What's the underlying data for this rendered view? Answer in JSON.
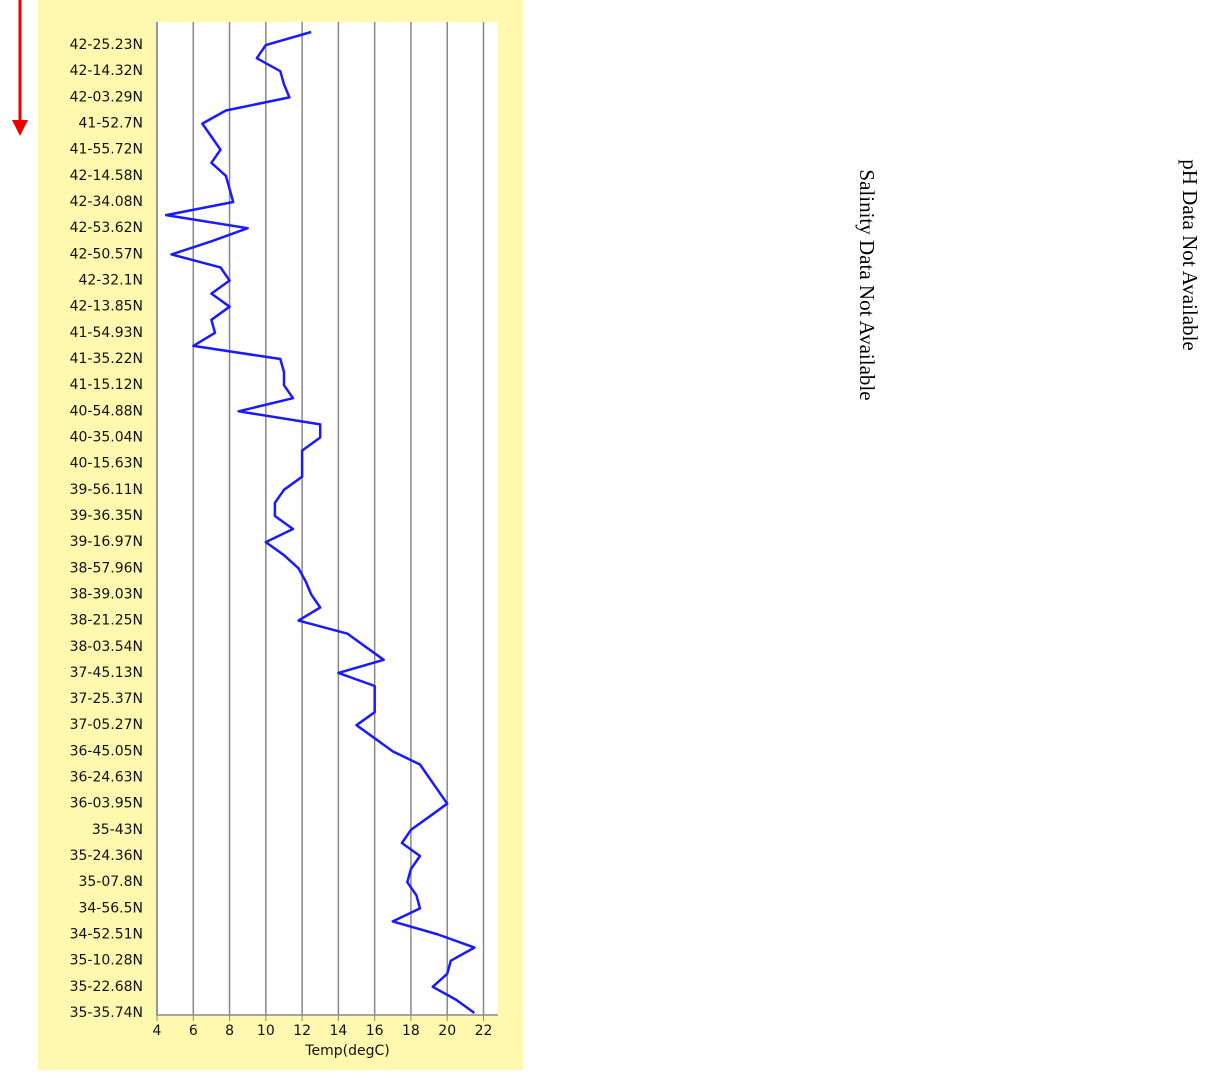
{
  "chart_data": {
    "type": "line",
    "orientation": "horizontal",
    "xlabel": "Temp(degC)",
    "categories": [
      null,
      "42-25.23N",
      null,
      "42-14.32N",
      null,
      "42-03.29N",
      null,
      "41-52.7N",
      null,
      "41-55.72N",
      null,
      "42-14.58N",
      null,
      "42-34.08N",
      null,
      "42-53.62N",
      null,
      "42-50.57N",
      null,
      "42-32.1N",
      null,
      "42-13.85N",
      null,
      "41-54.93N",
      null,
      "41-35.22N",
      null,
      "41-15.12N",
      null,
      "40-54.88N",
      null,
      "40-35.04N",
      null,
      "40-15.63N",
      null,
      "39-56.11N",
      null,
      "39-36.35N",
      null,
      "39-16.97N",
      null,
      "38-57.96N",
      null,
      "38-39.03N",
      null,
      "38-21.25N",
      null,
      "38-03.54N",
      null,
      "37-45.13N",
      null,
      "37-25.37N",
      null,
      "37-05.27N",
      null,
      "36-45.05N",
      null,
      "36-24.63N",
      null,
      "36-03.95N",
      null,
      "35-43N",
      null,
      "35-24.36N",
      null,
      "35-07.8N",
      null,
      "34-56.5N",
      null,
      "34-52.51N",
      null,
      "35-10.28N",
      null,
      "35-22.68N",
      null,
      "35-35.74N"
    ],
    "series": [
      {
        "color": "#1a1aff",
        "values": [
          12.5,
          10.0,
          9.5,
          10.8,
          11.0,
          11.3,
          7.8,
          6.5,
          7.0,
          7.5,
          7.0,
          7.8,
          8.0,
          8.2,
          4.5,
          9.0,
          7.0,
          4.8,
          7.5,
          8.0,
          7.0,
          8.0,
          7.0,
          7.2,
          6.0,
          10.8,
          11.0,
          11.0,
          11.5,
          8.5,
          13.0,
          13.0,
          12.0,
          12.0,
          12.0,
          11.0,
          10.5,
          10.5,
          11.5,
          10.0,
          11.0,
          11.8,
          12.2,
          12.5,
          13.0,
          11.8,
          14.5,
          15.5,
          16.5,
          14.0,
          16.0,
          16.0,
          16.0,
          15.0,
          16.0,
          17.0,
          18.5,
          19.0,
          19.5,
          20.0,
          19.0,
          18.0,
          17.5,
          18.5,
          18.0,
          17.8,
          18.3,
          18.5,
          17.0,
          19.5,
          21.5,
          20.2,
          20.0,
          19.2,
          20.5,
          21.5
        ]
      }
    ],
    "xlim": [
      4,
      22.8
    ],
    "xticks": [
      4,
      6,
      8,
      10,
      12,
      14,
      16,
      18,
      20,
      22
    ],
    "grid": true
  },
  "panels": [
    {
      "text": "Salinity Data Not Available"
    },
    {
      "text": "pH Data Not Available"
    }
  ]
}
